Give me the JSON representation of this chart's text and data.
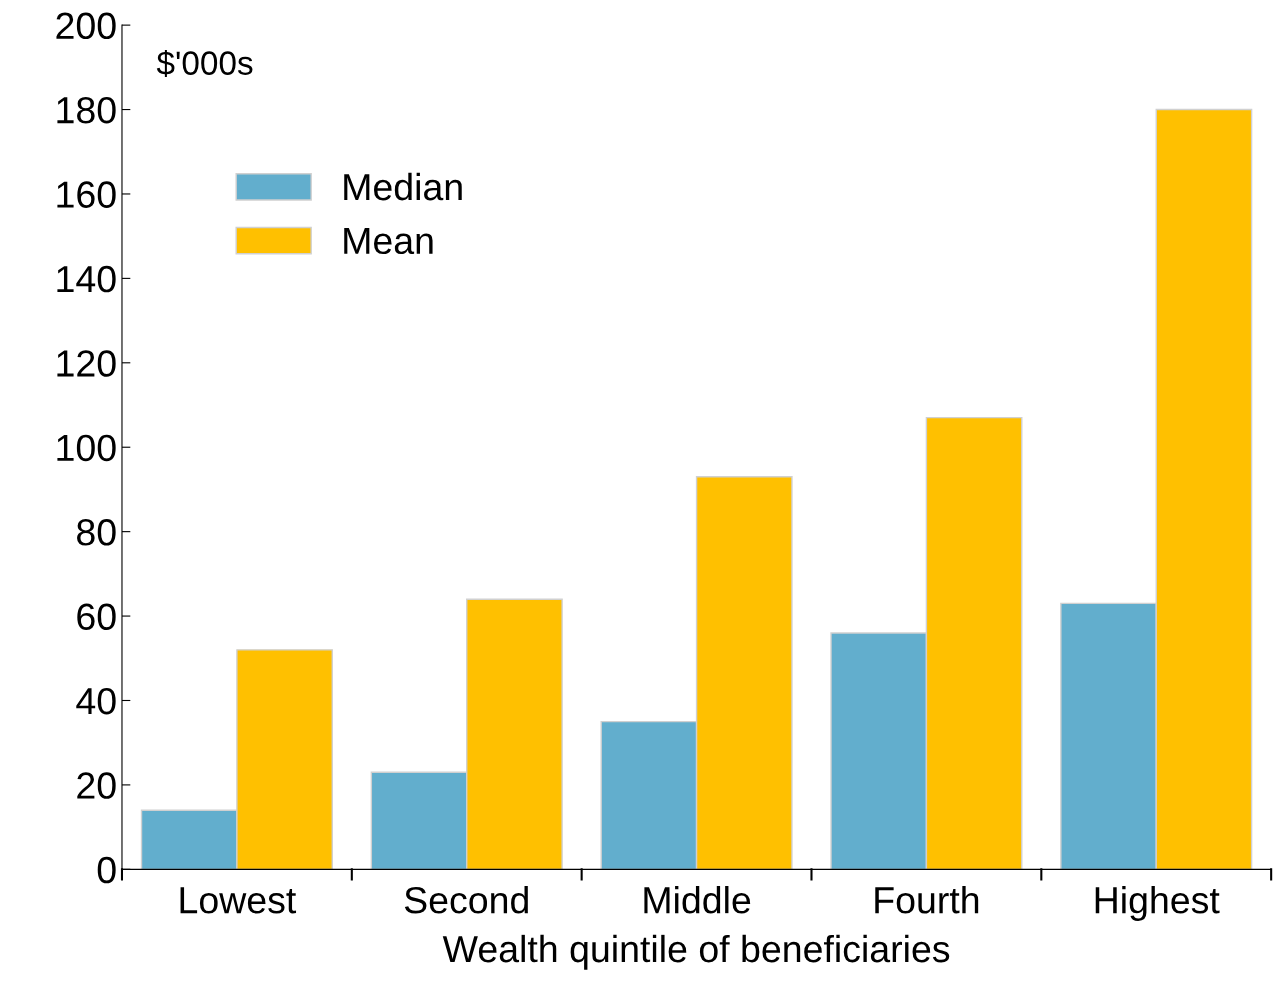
{
  "chart_data": {
    "type": "bar",
    "categories": [
      "Lowest",
      "Second",
      "Middle",
      "Fourth",
      "Highest"
    ],
    "series": [
      {
        "name": "Median",
        "color": "#62aecd",
        "values": [
          14,
          23,
          35,
          56,
          63
        ]
      },
      {
        "name": "Mean",
        "color": "#ffc000",
        "values": [
          52,
          64,
          93,
          107,
          180
        ]
      }
    ],
    "xlabel": "Wealth quintile of beneficiaries",
    "ylabel": "$'000s",
    "ylim": [
      0,
      200
    ],
    "yticks": [
      0,
      20,
      40,
      60,
      80,
      100,
      120,
      140,
      160,
      180,
      200
    ],
    "legend": "left",
    "grid": false
  }
}
